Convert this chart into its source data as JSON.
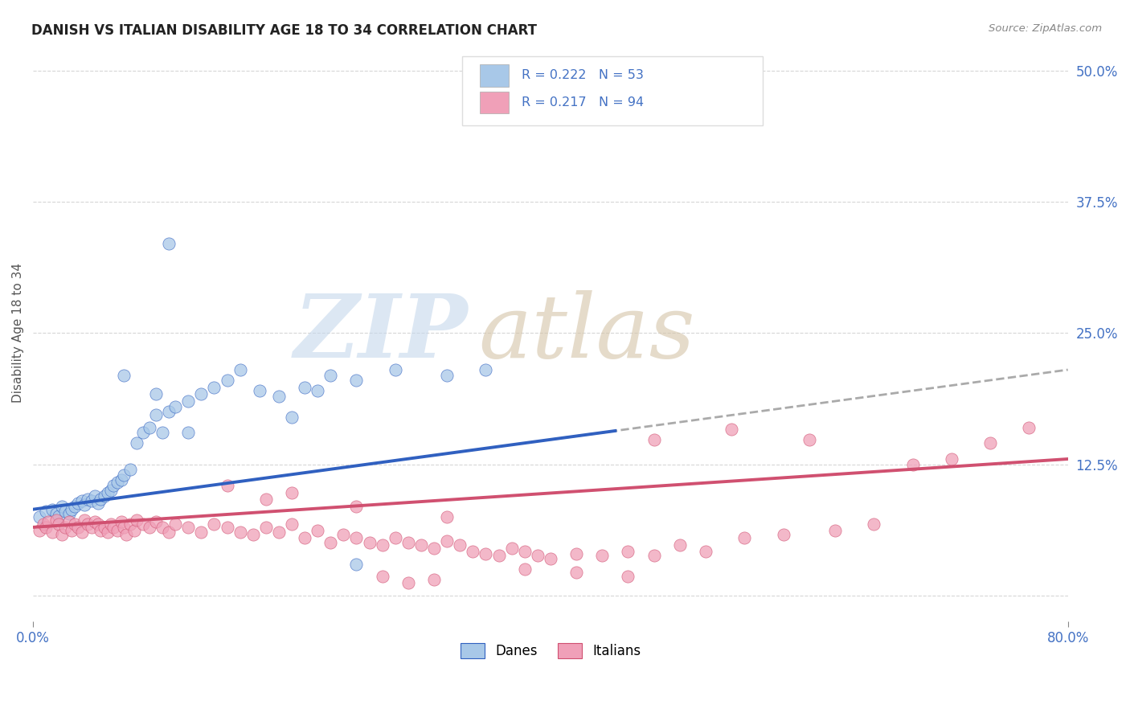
{
  "title": "DANISH VS ITALIAN DISABILITY AGE 18 TO 34 CORRELATION CHART",
  "source": "Source: ZipAtlas.com",
  "ylabel_label": "Disability Age 18 to 34",
  "xlim": [
    0.0,
    0.8
  ],
  "ylim": [
    -0.025,
    0.525
  ],
  "dane_r": "0.222",
  "dane_n": "53",
  "italian_r": "0.217",
  "italian_n": "94",
  "dane_color": "#a8c8e8",
  "danish_line_color": "#3060c0",
  "italian_color": "#f0a0b8",
  "italian_line_color": "#d05070",
  "dash_color": "#aaaaaa",
  "danes_x": [
    0.005,
    0.01,
    0.015,
    0.018,
    0.02,
    0.022,
    0.025,
    0.028,
    0.03,
    0.032,
    0.035,
    0.038,
    0.04,
    0.042,
    0.045,
    0.048,
    0.05,
    0.052,
    0.055,
    0.058,
    0.06,
    0.062,
    0.065,
    0.068,
    0.07,
    0.075,
    0.08,
    0.085,
    0.09,
    0.095,
    0.1,
    0.105,
    0.11,
    0.12,
    0.13,
    0.14,
    0.15,
    0.16,
    0.175,
    0.19,
    0.21,
    0.23,
    0.25,
    0.28,
    0.32,
    0.35,
    0.07,
    0.095,
    0.12,
    0.2,
    0.22,
    0.105,
    0.25
  ],
  "danes_y": [
    0.075,
    0.08,
    0.082,
    0.078,
    0.076,
    0.085,
    0.08,
    0.078,
    0.082,
    0.085,
    0.088,
    0.09,
    0.086,
    0.092,
    0.09,
    0.095,
    0.088,
    0.092,
    0.095,
    0.098,
    0.1,
    0.105,
    0.108,
    0.11,
    0.115,
    0.12,
    0.145,
    0.155,
    0.16,
    0.172,
    0.155,
    0.175,
    0.18,
    0.185,
    0.192,
    0.198,
    0.205,
    0.215,
    0.195,
    0.19,
    0.198,
    0.21,
    0.205,
    0.215,
    0.21,
    0.215,
    0.21,
    0.192,
    0.155,
    0.17,
    0.195,
    0.335,
    0.03
  ],
  "italians_x": [
    0.005,
    0.008,
    0.01,
    0.012,
    0.015,
    0.018,
    0.02,
    0.022,
    0.025,
    0.028,
    0.03,
    0.032,
    0.035,
    0.038,
    0.04,
    0.042,
    0.045,
    0.048,
    0.05,
    0.052,
    0.055,
    0.058,
    0.06,
    0.062,
    0.065,
    0.068,
    0.07,
    0.072,
    0.075,
    0.078,
    0.08,
    0.085,
    0.09,
    0.095,
    0.1,
    0.105,
    0.11,
    0.12,
    0.13,
    0.14,
    0.15,
    0.16,
    0.17,
    0.18,
    0.19,
    0.2,
    0.21,
    0.22,
    0.23,
    0.24,
    0.25,
    0.26,
    0.27,
    0.28,
    0.29,
    0.3,
    0.31,
    0.32,
    0.33,
    0.34,
    0.35,
    0.36,
    0.37,
    0.38,
    0.39,
    0.4,
    0.42,
    0.44,
    0.46,
    0.48,
    0.5,
    0.52,
    0.55,
    0.58,
    0.62,
    0.65,
    0.68,
    0.71,
    0.74,
    0.77,
    0.42,
    0.46,
    0.32,
    0.25,
    0.18,
    0.38,
    0.31,
    0.29,
    0.27,
    0.2,
    0.15,
    0.48,
    0.54,
    0.6
  ],
  "italians_y": [
    0.062,
    0.068,
    0.065,
    0.07,
    0.06,
    0.072,
    0.068,
    0.058,
    0.065,
    0.07,
    0.062,
    0.068,
    0.065,
    0.06,
    0.072,
    0.068,
    0.065,
    0.07,
    0.068,
    0.062,
    0.065,
    0.06,
    0.068,
    0.065,
    0.062,
    0.07,
    0.065,
    0.058,
    0.068,
    0.062,
    0.072,
    0.068,
    0.065,
    0.07,
    0.065,
    0.06,
    0.068,
    0.065,
    0.06,
    0.068,
    0.065,
    0.06,
    0.058,
    0.065,
    0.06,
    0.068,
    0.055,
    0.062,
    0.05,
    0.058,
    0.055,
    0.05,
    0.048,
    0.055,
    0.05,
    0.048,
    0.045,
    0.052,
    0.048,
    0.042,
    0.04,
    0.038,
    0.045,
    0.042,
    0.038,
    0.035,
    0.04,
    0.038,
    0.042,
    0.038,
    0.048,
    0.042,
    0.055,
    0.058,
    0.062,
    0.068,
    0.125,
    0.13,
    0.145,
    0.16,
    0.022,
    0.018,
    0.075,
    0.085,
    0.092,
    0.025,
    0.015,
    0.012,
    0.018,
    0.098,
    0.105,
    0.148,
    0.158,
    0.148
  ]
}
